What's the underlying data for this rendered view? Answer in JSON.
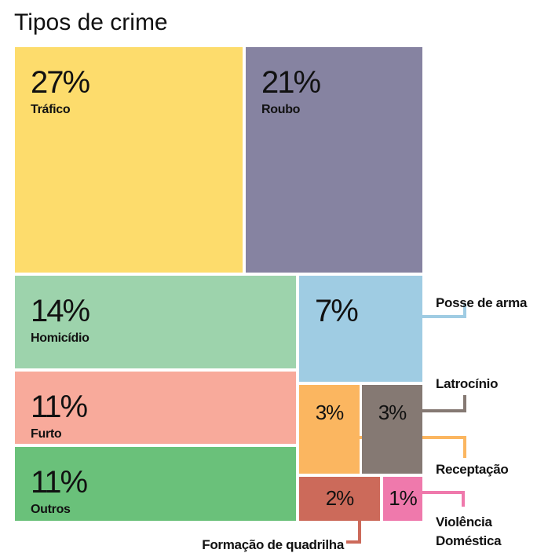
{
  "chart_data": {
    "type": "treemap",
    "title": "Tipos de crime",
    "categories": [
      "Tráfico",
      "Roubo",
      "Homicídio",
      "Furto",
      "Outros",
      "Posse de arma",
      "Receptação",
      "Latrocínio",
      "Formação de quadrilha",
      "Violência Doméstica"
    ],
    "values": [
      27,
      21,
      14,
      11,
      11,
      7,
      3,
      3,
      2,
      1
    ],
    "value_labels": [
      "27%",
      "21%",
      "14%",
      "11%",
      "11%",
      "7%",
      "3%",
      "3%",
      "2%",
      "1%"
    ],
    "colors": [
      "#fddc6c",
      "#8683a1",
      "#9dd3ac",
      "#f8aa9b",
      "#6ac17a",
      "#9fcce3",
      "#fbb660",
      "#857973",
      "#cc6a5a",
      "#ef79ac"
    ]
  }
}
